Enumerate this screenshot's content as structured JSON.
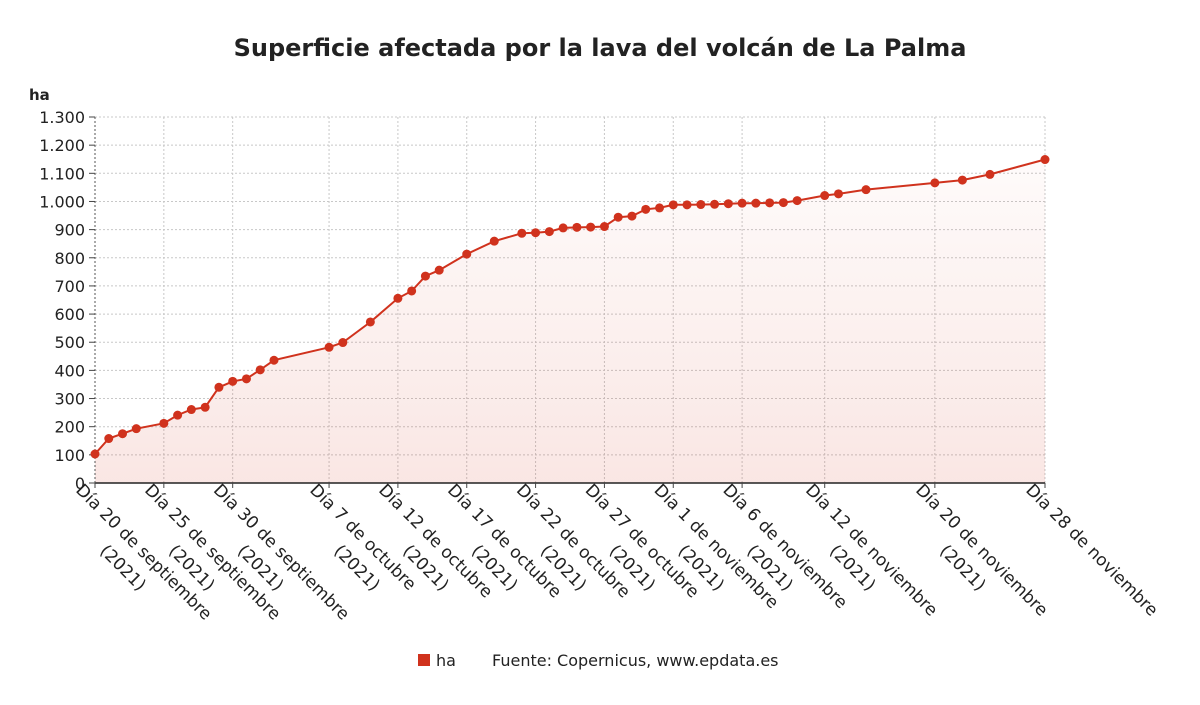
{
  "chart_data": {
    "type": "area",
    "title": "Superficie afectada por la lava del volcán de La Palma",
    "ylabel": "ha",
    "xlabel": "",
    "ylim": [
      0,
      1300
    ],
    "yticks": [
      0,
      100,
      200,
      300,
      400,
      500,
      600,
      700,
      800,
      900,
      1000,
      1100,
      1200,
      1300
    ],
    "ytick_labels": [
      "0",
      "100",
      "200",
      "300",
      "400",
      "500",
      "600",
      "700",
      "800",
      "900",
      "1.000",
      "1.100",
      "1.200",
      "1.300"
    ],
    "xlim": [
      0,
      69
    ],
    "x_ticks": [
      {
        "x": 0,
        "line1": "Día 20 de septiembre",
        "line2": "(2021)"
      },
      {
        "x": 5,
        "line1": "Día 25 de septiembre",
        "line2": "(2021)"
      },
      {
        "x": 10,
        "line1": "Día 30 de septiembre",
        "line2": "(2021)"
      },
      {
        "x": 17,
        "line1": "Día 7 de octubre",
        "line2": "(2021)"
      },
      {
        "x": 22,
        "line1": "Día 12 de octubre",
        "line2": "(2021)"
      },
      {
        "x": 27,
        "line1": "Día 17 de octubre",
        "line2": "(2021)"
      },
      {
        "x": 32,
        "line1": "Día 22 de octubre",
        "line2": "(2021)"
      },
      {
        "x": 37,
        "line1": "Día 27 de octubre",
        "line2": "(2021)"
      },
      {
        "x": 42,
        "line1": "Día 1 de noviembre",
        "line2": "(2021)"
      },
      {
        "x": 47,
        "line1": "Día 6 de noviembre",
        "line2": "(2021)"
      },
      {
        "x": 53,
        "line1": "Día 12 de noviembre",
        "line2": "(2021)"
      },
      {
        "x": 61,
        "line1": "Día 20 de noviembre",
        "line2": "(2021)"
      },
      {
        "x": 69,
        "line1": "Día 28 de noviembre",
        "line2": ""
      }
    ],
    "series": [
      {
        "name": "ha",
        "color": "#d0321d",
        "x": [
          0,
          1,
          2,
          3,
          5,
          6,
          7,
          8,
          9,
          10,
          11,
          12,
          13,
          17,
          18,
          20,
          22,
          23,
          24,
          25,
          27,
          29,
          31,
          32,
          33,
          34,
          35,
          36,
          37,
          38,
          39,
          40,
          41,
          42,
          43,
          44,
          45,
          46,
          47,
          48,
          49,
          50,
          51,
          53,
          54,
          56,
          61,
          63,
          65,
          69
        ],
        "values": [
          103,
          158,
          175,
          193,
          212,
          241,
          261,
          269,
          340,
          361,
          370,
          402,
          436,
          482,
          499,
          572,
          656,
          682,
          735,
          756,
          813,
          859,
          887,
          889,
          893,
          906,
          908,
          909,
          911,
          944,
          948,
          972,
          977,
          988,
          988,
          989,
          990,
          992,
          994,
          994,
          995,
          996,
          1003,
          1021,
          1027,
          1042,
          1066,
          1076,
          1096,
          1149
        ]
      }
    ],
    "legend": [
      {
        "label": "ha",
        "color": "#d0321d"
      }
    ],
    "source": "Fuente: Copernicus, www.epdata.es"
  }
}
